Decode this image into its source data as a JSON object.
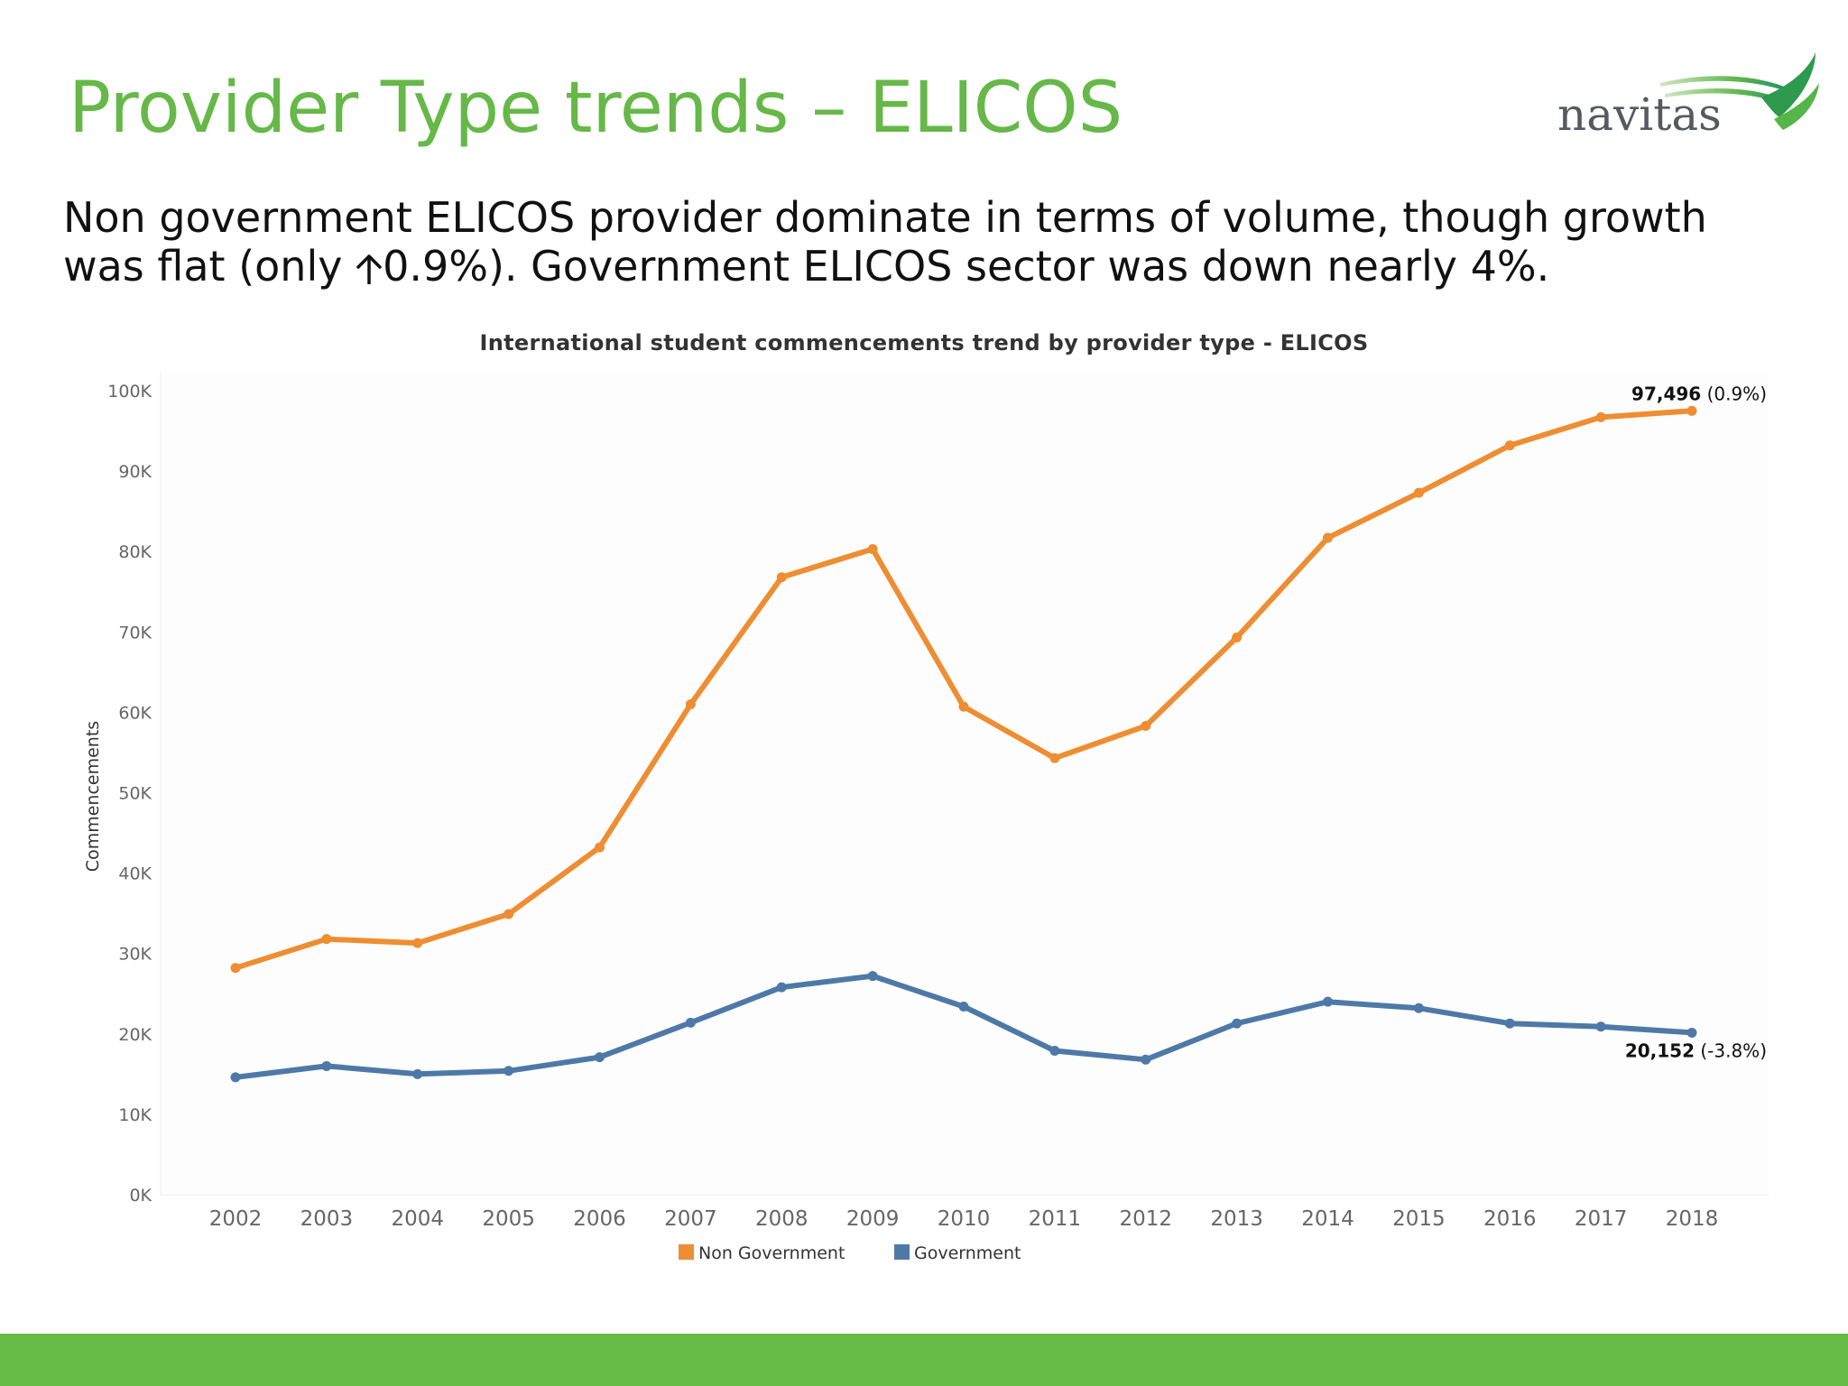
{
  "slide": {
    "title": "Provider Type trends – ELICOS",
    "subtitle_line1": "Non government ELICOS provider dominate in terms of volume, though growth",
    "subtitle_prefix": "was flat (only ",
    "subtitle_arrow_icon": "arrow-up-icon",
    "subtitle_suffix": "0.9%). Government ELICOS sector was down nearly 4%.",
    "logo_text": "navitas",
    "colors": {
      "title": "#66b848",
      "footer": "#66bb47"
    }
  },
  "chart_data": {
    "type": "line",
    "title": "International student commencements trend by provider type - ELICOS",
    "ylabel": "Commencements",
    "xlabel": "",
    "ylim": [
      0,
      100000
    ],
    "yticks": [
      0,
      10000,
      20000,
      30000,
      40000,
      50000,
      60000,
      70000,
      80000,
      90000,
      100000
    ],
    "ytick_labels": [
      "0K",
      "10K",
      "20K",
      "30K",
      "40K",
      "50K",
      "60K",
      "70K",
      "80K",
      "90K",
      "100K"
    ],
    "categories": [
      "2002",
      "2003",
      "2004",
      "2005",
      "2006",
      "2007",
      "2008",
      "2009",
      "2010",
      "2011",
      "2012",
      "2013",
      "2014",
      "2015",
      "2016",
      "2017",
      "2018"
    ],
    "legend_position": "bottom",
    "grid": false,
    "series": [
      {
        "name": "Non Government",
        "color": "#ee8d32",
        "values": [
          28200,
          31800,
          31300,
          34900,
          43200,
          61000,
          76800,
          80300,
          60700,
          54300,
          58300,
          69300,
          81700,
          87300,
          93200,
          96700,
          97496
        ],
        "end_label_value": "97,496",
        "end_label_change": " (0.9%)"
      },
      {
        "name": "Government",
        "color": "#4e79a7",
        "values": [
          14600,
          16000,
          15000,
          15400,
          17100,
          21400,
          25800,
          27200,
          23400,
          17900,
          16800,
          21300,
          24000,
          23200,
          21300,
          20900,
          20152
        ],
        "end_label_value": "20,152",
        "end_label_change": " (-3.8%)"
      }
    ]
  }
}
